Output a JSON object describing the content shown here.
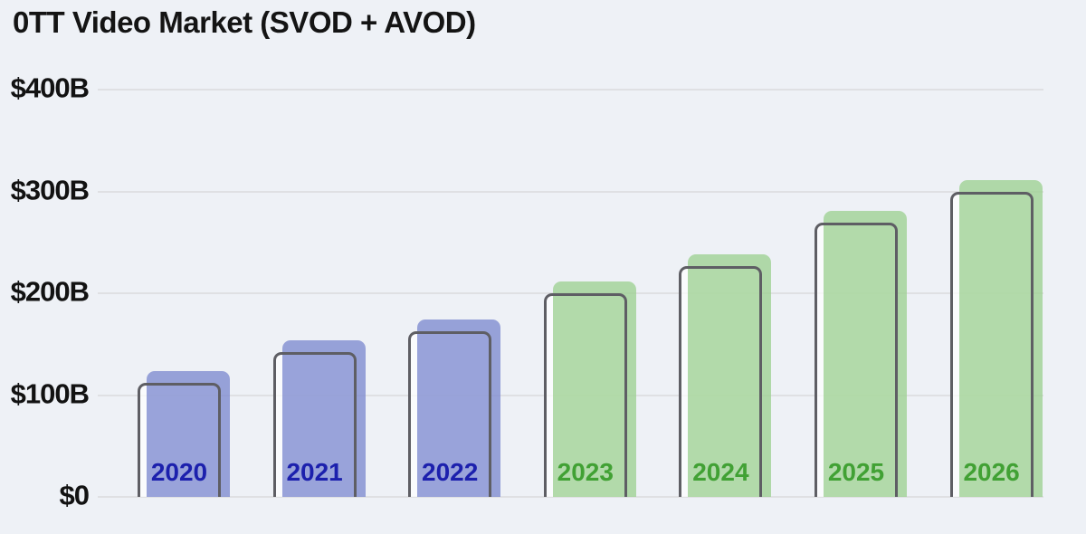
{
  "title": "0TT Video Market (SVOD + AVOD)",
  "colors": {
    "background": "#eef1f6",
    "gridline": "#dfe0e3",
    "bar_outline_stroke": "#5e5e64",
    "historical_fill": "#7e8acf",
    "historical_label": "#1c20ad",
    "forecast_fill": "#9ed192",
    "forecast_label": "#41a134",
    "title_text": "#141414",
    "axis_text": "#121212"
  },
  "chart_data": {
    "type": "bar",
    "title": "0TT Video Market (SVOD + AVOD)",
    "unit": "USD billions",
    "categories": [
      "2020",
      "2021",
      "2022",
      "2023",
      "2024",
      "2025",
      "2026"
    ],
    "values": [
      112,
      142,
      163,
      200,
      227,
      269,
      300
    ],
    "segments": [
      "historical",
      "historical",
      "historical",
      "forecast",
      "forecast",
      "forecast",
      "forecast"
    ],
    "series": [
      {
        "name": "historical",
        "years": [
          "2020",
          "2021",
          "2022"
        ],
        "values": [
          112,
          142,
          163
        ],
        "fill": "#7e8acf",
        "label_color": "#1c20ad"
      },
      {
        "name": "forecast",
        "years": [
          "2023",
          "2024",
          "2025",
          "2026"
        ],
        "values": [
          200,
          227,
          269,
          300
        ],
        "fill": "#9ed192",
        "label_color": "#41a134"
      }
    ],
    "xlabel": "",
    "ylabel": "",
    "ylim": [
      0,
      400
    ],
    "grid": true,
    "legend_position": "none",
    "y_ticks": [
      {
        "label": "$400B",
        "value": 400
      },
      {
        "label": "$300B",
        "value": 300
      },
      {
        "label": "$200B",
        "value": 200
      },
      {
        "label": "$100B",
        "value": 100
      },
      {
        "label": "$0",
        "value": 0
      }
    ]
  }
}
